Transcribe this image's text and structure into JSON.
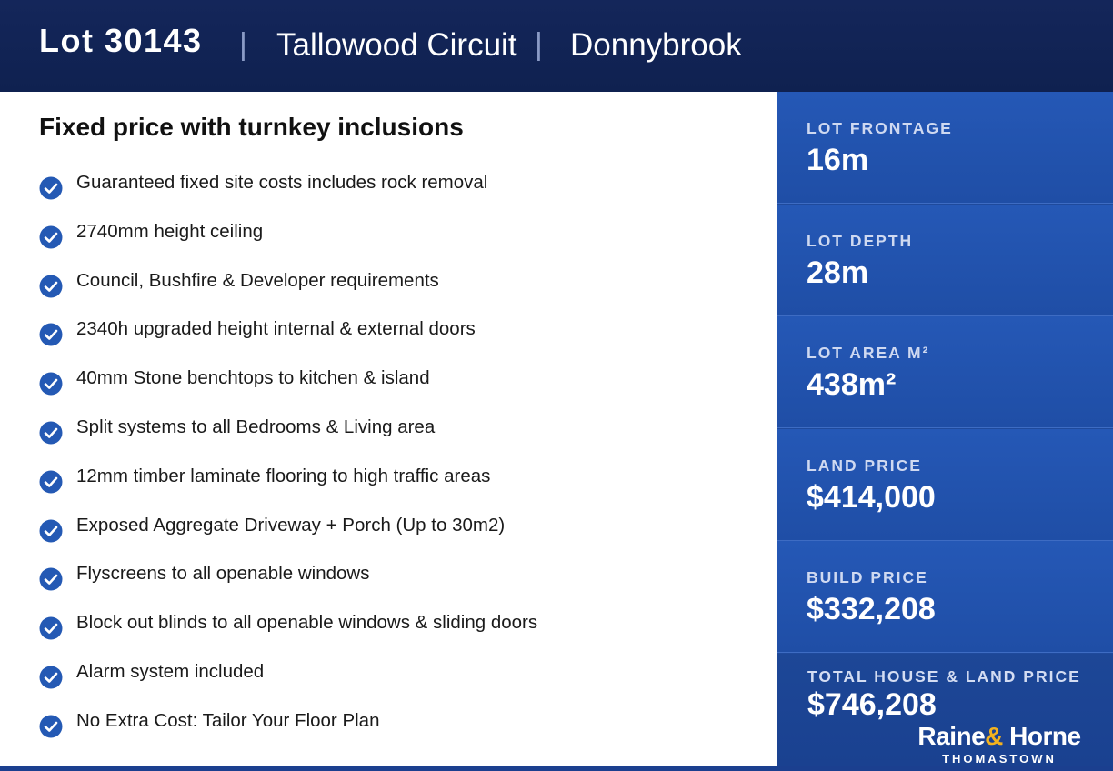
{
  "header": {
    "lot": "Lot 30143",
    "separator": "|",
    "street": "Tallowood Circuit",
    "suburb": "Donnybrook"
  },
  "inclusions": {
    "title": "Fixed price with turnkey inclusions",
    "items": [
      "Guaranteed fixed site costs includes rock removal",
      "2740mm height ceiling",
      "Council, Bushfire & Developer requirements",
      "2340h upgraded height internal & external doors",
      "40mm Stone benchtops to kitchen & island",
      "Split systems to all Bedrooms & Living area",
      "12mm timber laminate flooring to high traffic areas",
      "Exposed Aggregate Driveway + Porch (Up to 30m2)",
      "Flyscreens to all openable windows",
      "Block out blinds to all openable windows & sliding doors",
      "Alarm system included",
      "No Extra Cost: Tailor Your Floor Plan"
    ],
    "check_icon": "check-circle-icon",
    "check_color": "#2459b4"
  },
  "stats": [
    {
      "label": "LOT FRONTAGE",
      "value": "16m"
    },
    {
      "label": "LOT DEPTH",
      "value": "28m"
    },
    {
      "label": "LOT AREA M²",
      "value": "438m²"
    },
    {
      "label": "LAND PRICE",
      "value": "$414,000"
    },
    {
      "label": "BUILD PRICE",
      "value": "$332,208"
    }
  ],
  "total": {
    "label": "TOTAL HOUSE & LAND PRICE",
    "value": "$746,208"
  },
  "logo": {
    "brand_left": "Raine",
    "brand_amp": "&",
    "brand_right": " Horne",
    "office": "THOMASTOWN"
  },
  "colors": {
    "header_bg": "#0f2150",
    "panel_blue": "#2558b6",
    "accent_gold": "#f3b21f"
  }
}
